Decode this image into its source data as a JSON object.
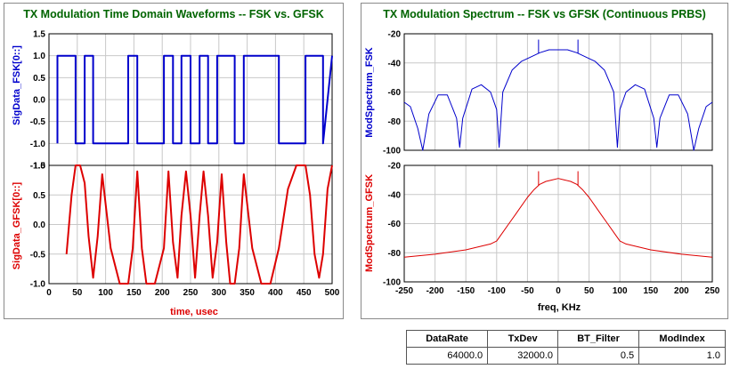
{
  "colors": {
    "title": "#006400",
    "fsk": "#0000cc",
    "gfsk": "#dd0000",
    "grid": "#c8c8c8"
  },
  "left_panel": {
    "title": "TX Modulation Time Domain Waveforms -- FSK vs. GFSK",
    "top_ylabel": "SigData_FSK[0::]",
    "bottom_ylabel": "SigData_GFSK[0::]",
    "xlabel": "time, usec"
  },
  "right_panel": {
    "title": "TX Modulation Spectrum -- FSK vs GFSK (Continuous PRBS)",
    "top_ylabel": "ModSpectrum_FSK",
    "bottom_ylabel": "ModSpectrum_GFSK",
    "xlabel": "freq, KHz"
  },
  "table": {
    "headers": [
      "DataRate",
      "TxDev",
      "BT_Filter",
      "ModIndex"
    ],
    "values": [
      "64000.0",
      "32000.0",
      "0.5",
      "1.0"
    ]
  },
  "chart_data": [
    {
      "type": "line",
      "title": "TX Modulation Time Domain Waveforms -- FSK vs. GFSK",
      "xlabel": "time, usec",
      "ylabel": "SigData_FSK[0::]",
      "xlim": [
        0,
        500
      ],
      "ylim": [
        -1.5,
        1.5
      ],
      "x_ticks": [
        "0",
        "50",
        "100",
        "150",
        "200",
        "250",
        "300",
        "350",
        "400",
        "450",
        "500"
      ],
      "y_ticks": [
        "-1.5",
        "-1.0",
        "-0.5",
        "0.0",
        "0.5",
        "1.0",
        "1.5"
      ],
      "grid": true,
      "series": [
        {
          "name": "SigData_FSK[0::]",
          "x": [
            15,
            15,
            47,
            47,
            63,
            63,
            78,
            78,
            140,
            140,
            156,
            156,
            203,
            203,
            219,
            219,
            234,
            234,
            250,
            250,
            266,
            266,
            281,
            281,
            297,
            297,
            328,
            328,
            344,
            344,
            406,
            406,
            453,
            453,
            484,
            484,
            500
          ],
          "y": [
            -1,
            1,
            1,
            -1,
            -1,
            1,
            1,
            -1,
            -1,
            1,
            1,
            -1,
            -1,
            1,
            1,
            -1,
            -1,
            1,
            1,
            -1,
            -1,
            1,
            1,
            -1,
            -1,
            1,
            1,
            -1,
            -1,
            1,
            1,
            -1,
            -1,
            1,
            1,
            -1,
            1
          ]
        }
      ]
    },
    {
      "type": "line",
      "xlabel": "time, usec",
      "ylabel": "SigData_GFSK[0::]",
      "xlim": [
        0,
        500
      ],
      "ylim": [
        -1.0,
        1.0
      ],
      "x_ticks": [
        "0",
        "50",
        "100",
        "150",
        "200",
        "250",
        "300",
        "350",
        "400",
        "450",
        "500"
      ],
      "y_ticks": [
        "-1.0",
        "-0.5",
        "0.0",
        "0.5",
        "1.0"
      ],
      "grid": true,
      "series": [
        {
          "name": "SigData_GFSK[0::]",
          "x": [
            31,
            40,
            47,
            55,
            63,
            70,
            78,
            86,
            94,
            109,
            125,
            140,
            148,
            156,
            164,
            172,
            187,
            203,
            211,
            219,
            227,
            234,
            242,
            250,
            258,
            266,
            273,
            281,
            289,
            297,
            305,
            313,
            320,
            328,
            336,
            344,
            359,
            375,
            391,
            406,
            422,
            437,
            453,
            461,
            469,
            477,
            484,
            492,
            500
          ],
          "y": [
            -0.5,
            0.5,
            1.0,
            1.0,
            0.7,
            -0.2,
            -0.9,
            -0.2,
            0.85,
            -0.4,
            -1.0,
            -1.0,
            -0.4,
            0.9,
            -0.4,
            -1.0,
            -1.0,
            -0.4,
            0.9,
            -0.3,
            -0.9,
            0.15,
            0.9,
            0.15,
            -0.9,
            0.15,
            0.9,
            0.15,
            -0.9,
            -0.3,
            0.85,
            -0.3,
            -1.0,
            -1.0,
            -0.4,
            0.85,
            -0.4,
            -1.0,
            -1.0,
            -0.4,
            0.6,
            1.0,
            1.0,
            0.5,
            -0.5,
            -0.9,
            -0.5,
            0.6,
            1.0
          ]
        }
      ]
    },
    {
      "type": "line",
      "title": "TX Modulation Spectrum -- FSK vs GFSK (Continuous PRBS)",
      "xlabel": "freq, KHz",
      "ylabel": "ModSpectrum_FSK",
      "xlim": [
        -250,
        250
      ],
      "ylim": [
        -100,
        -20
      ],
      "x_ticks": [
        "-250",
        "-200",
        "-150",
        "-100",
        "-50",
        "0",
        "50",
        "100",
        "150",
        "200",
        "250"
      ],
      "y_ticks": [
        "-100",
        "-80",
        "-60",
        "-40",
        "-20"
      ],
      "grid": true,
      "series": [
        {
          "name": "ModSpectrum_FSK",
          "x": [
            -250,
            -240,
            -228,
            -220,
            -210,
            -195,
            -180,
            -165,
            -160,
            -155,
            -140,
            -125,
            -110,
            -100,
            -96,
            -90,
            -75,
            -60,
            -45,
            -30,
            -15,
            0,
            15,
            30,
            45,
            60,
            75,
            90,
            96,
            100,
            110,
            125,
            140,
            155,
            160,
            165,
            180,
            195,
            210,
            220,
            228,
            240,
            250
          ],
          "y": [
            -67,
            -70,
            -85,
            -100,
            -75,
            -62,
            -62,
            -78,
            -98,
            -78,
            -58,
            -55,
            -60,
            -72,
            -98,
            -60,
            -45,
            -39,
            -36,
            -33,
            -31,
            -31,
            -31,
            -33,
            -36,
            -39,
            -45,
            -60,
            -98,
            -72,
            -60,
            -55,
            -58,
            -78,
            -98,
            -78,
            -62,
            -62,
            -75,
            -100,
            -85,
            -70,
            -67
          ],
          "spikes": [
            {
              "x": -32,
              "y": -24
            },
            {
              "x": 32,
              "y": -24
            }
          ]
        }
      ]
    },
    {
      "type": "line",
      "xlabel": "freq, KHz",
      "ylabel": "ModSpectrum_GFSK",
      "xlim": [
        -250,
        250
      ],
      "ylim": [
        -100,
        -20
      ],
      "x_ticks": [
        "-250",
        "-200",
        "-150",
        "-100",
        "-50",
        "0",
        "50",
        "100",
        "150",
        "200",
        "250"
      ],
      "y_ticks": [
        "-100",
        "-80",
        "-60",
        "-40",
        "-20"
      ],
      "grid": true,
      "series": [
        {
          "name": "ModSpectrum_GFSK",
          "x": [
            -250,
            -200,
            -150,
            -110,
            -100,
            -90,
            -80,
            -70,
            -60,
            -50,
            -40,
            -30,
            -20,
            -10,
            0,
            10,
            20,
            30,
            40,
            50,
            60,
            70,
            80,
            90,
            100,
            110,
            150,
            200,
            250
          ],
          "y": [
            -83,
            -81,
            -78,
            -74,
            -72,
            -66,
            -60,
            -54,
            -48,
            -42,
            -37,
            -33,
            -31,
            -30,
            -29,
            -30,
            -31,
            -33,
            -37,
            -42,
            -48,
            -54,
            -60,
            -66,
            -72,
            -74,
            -78,
            -81,
            -83
          ],
          "spikes": [
            {
              "x": -32,
              "y": -24
            },
            {
              "x": 32,
              "y": -24
            }
          ]
        }
      ]
    }
  ]
}
